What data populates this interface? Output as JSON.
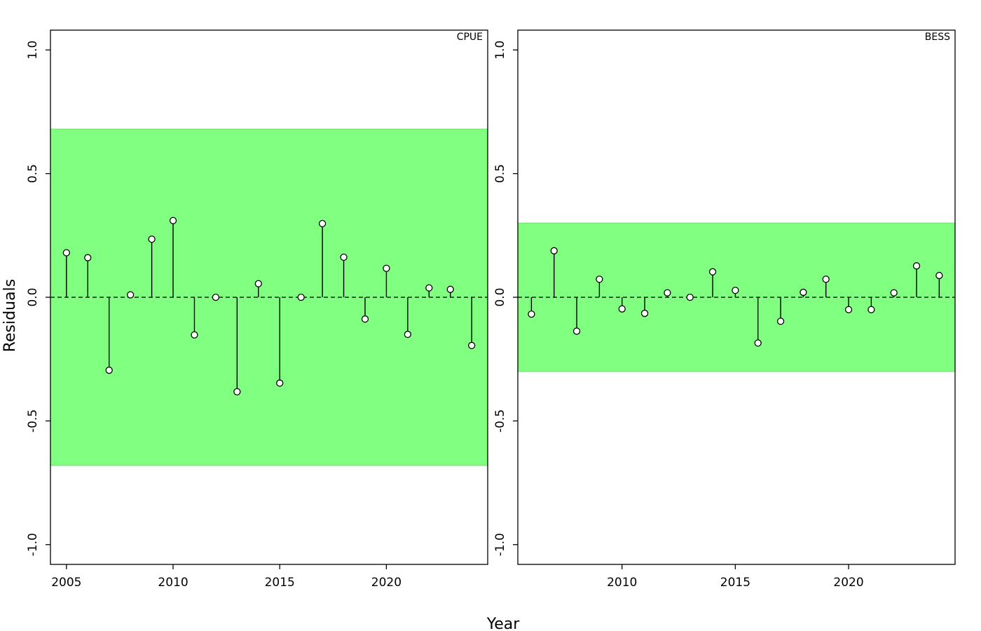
{
  "figure": {
    "xlabel": "Year",
    "ylabel": "Residuals"
  },
  "colors": {
    "band": "#80ff80",
    "band_edge": "#66e066",
    "stem": "#000000",
    "point_fill": "#ffffff",
    "zero_line": "#000000"
  },
  "chart_data": [
    {
      "type": "scatter",
      "title": "CPUE",
      "xlabel": "Year",
      "ylabel": "Residuals",
      "xlim": [
        2004.25,
        2024.75
      ],
      "ylim": [
        -1.08,
        1.08
      ],
      "xticks": [
        2005,
        2010,
        2015,
        2020
      ],
      "yticks": [
        -1.0,
        -0.5,
        0.0,
        0.5,
        1.0
      ],
      "ytick_labels": [
        "-1.0",
        "-0.5",
        "0.0",
        "0.5",
        "1.0"
      ],
      "band": [
        -0.68,
        0.68
      ],
      "zero_line": "dashed",
      "x": [
        2005,
        2006,
        2007,
        2008,
        2009,
        2010,
        2011,
        2012,
        2013,
        2014,
        2015,
        2016,
        2017,
        2018,
        2019,
        2020,
        2021,
        2022,
        2023,
        2024
      ],
      "y": [
        0.18,
        0.16,
        -0.295,
        0.01,
        0.235,
        0.31,
        -0.152,
        0.0,
        -0.382,
        0.055,
        -0.347,
        0.0,
        0.298,
        0.162,
        -0.088,
        0.117,
        -0.15,
        0.038,
        0.032,
        -0.195
      ]
    },
    {
      "type": "scatter",
      "title": "BESS",
      "xlabel": "Year",
      "ylabel": "Residuals",
      "xlim": [
        2005.4,
        2024.7
      ],
      "ylim": [
        -1.08,
        1.08
      ],
      "xticks": [
        2010,
        2015,
        2020
      ],
      "yticks": [
        -1.0,
        -0.5,
        0.0,
        0.5,
        1.0
      ],
      "ytick_labels": [
        "-1.0",
        "-0.5",
        "0.0",
        "0.5",
        "1.0"
      ],
      "band": [
        -0.3,
        0.3
      ],
      "zero_line": "dashed",
      "x": [
        2006,
        2007,
        2008,
        2009,
        2010,
        2011,
        2012,
        2013,
        2014,
        2015,
        2016,
        2017,
        2018,
        2019,
        2020,
        2021,
        2022,
        2023,
        2024
      ],
      "y": [
        -0.068,
        0.188,
        -0.137,
        0.073,
        -0.047,
        -0.065,
        0.018,
        0.0,
        0.103,
        0.028,
        -0.185,
        -0.097,
        0.02,
        0.073,
        -0.05,
        -0.05,
        0.018,
        0.127,
        0.088
      ]
    }
  ]
}
